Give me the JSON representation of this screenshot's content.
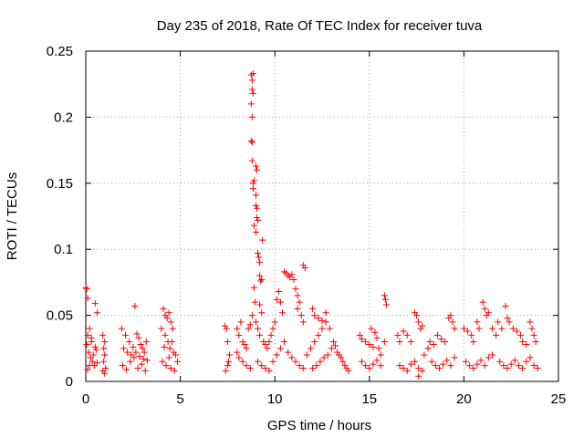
{
  "chart_data": {
    "type": "scatter",
    "title": "Day 235 of 2018, Rate Of TEC Index for receiver tuva",
    "xlabel": "GPS time / hours",
    "ylabel": "ROTI / TECUs",
    "xlim": [
      0,
      25
    ],
    "ylim": [
      0,
      0.25
    ],
    "xticks": [
      0,
      5,
      10,
      15,
      20,
      25
    ],
    "xtick_labels": [
      "0",
      "5",
      "10",
      "15",
      "20",
      "25"
    ],
    "yticks": [
      0,
      0.05,
      0.1,
      0.15,
      0.2,
      0.25
    ],
    "ytick_labels": [
      "0",
      "0.05",
      "0.1",
      "0.15",
      "0.2",
      "0.25"
    ],
    "grid": true,
    "marker": "+",
    "color": "#ff0000",
    "series": [
      {
        "points": [
          [
            0.0,
            0.071
          ],
          [
            0.05,
            0.07
          ],
          [
            0.1,
            0.063
          ],
          [
            0.2,
            0.04
          ],
          [
            0.3,
            0.033
          ],
          [
            0.5,
            0.059
          ],
          [
            0.6,
            0.052
          ],
          [
            0.05,
            0.028
          ],
          [
            0.15,
            0.022
          ],
          [
            0.25,
            0.018
          ],
          [
            0.35,
            0.015
          ],
          [
            0.45,
            0.012
          ],
          [
            0.55,
            0.024
          ],
          [
            0.1,
            0.009
          ],
          [
            0.3,
            0.03
          ],
          [
            0.5,
            0.026
          ],
          [
            0.4,
            0.02
          ],
          [
            0.2,
            0.012
          ],
          [
            0.6,
            0.014
          ],
          [
            0.1,
            0.035
          ],
          [
            0.9,
            0.035
          ],
          [
            1.0,
            0.03
          ],
          [
            0.95,
            0.025
          ],
          [
            1.0,
            0.02
          ],
          [
            0.95,
            0.015
          ],
          [
            1.05,
            0.01
          ],
          [
            0.9,
            0.008
          ],
          [
            1.0,
            0.006
          ],
          [
            1.9,
            0.04
          ],
          [
            2.1,
            0.035
          ],
          [
            2.3,
            0.03
          ],
          [
            2.0,
            0.025
          ],
          [
            2.2,
            0.022
          ],
          [
            2.4,
            0.02
          ],
          [
            2.6,
            0.057
          ],
          [
            2.7,
            0.036
          ],
          [
            2.8,
            0.033
          ],
          [
            2.9,
            0.028
          ],
          [
            3.0,
            0.025
          ],
          [
            3.1,
            0.022
          ],
          [
            3.2,
            0.03
          ],
          [
            1.95,
            0.012
          ],
          [
            2.15,
            0.009
          ],
          [
            2.35,
            0.015
          ],
          [
            2.55,
            0.018
          ],
          [
            2.75,
            0.01
          ],
          [
            2.95,
            0.013
          ],
          [
            3.15,
            0.008
          ],
          [
            3.25,
            0.016
          ],
          [
            2.5,
            0.026
          ],
          [
            2.65,
            0.022
          ],
          [
            2.85,
            0.019
          ],
          [
            3.05,
            0.017
          ],
          [
            4.0,
            0.04
          ],
          [
            4.1,
            0.055
          ],
          [
            4.2,
            0.05
          ],
          [
            4.3,
            0.048
          ],
          [
            4.4,
            0.052
          ],
          [
            4.5,
            0.045
          ],
          [
            4.6,
            0.04
          ],
          [
            4.2,
            0.035
          ],
          [
            4.35,
            0.03
          ],
          [
            4.45,
            0.025
          ],
          [
            4.55,
            0.03
          ],
          [
            4.65,
            0.022
          ],
          [
            4.75,
            0.02
          ],
          [
            4.05,
            0.015
          ],
          [
            4.25,
            0.012
          ],
          [
            4.5,
            0.01
          ],
          [
            4.7,
            0.008
          ],
          [
            4.85,
            0.015
          ],
          [
            4.15,
            0.026
          ],
          [
            4.4,
            0.018
          ],
          [
            7.35,
            0.042
          ],
          [
            7.45,
            0.04
          ],
          [
            7.5,
            0.012
          ],
          [
            7.4,
            0.008
          ],
          [
            7.55,
            0.015
          ],
          [
            7.6,
            0.02
          ],
          [
            7.5,
            0.03
          ],
          [
            8.0,
            0.04
          ],
          [
            8.1,
            0.035
          ],
          [
            8.2,
            0.045
          ],
          [
            8.3,
            0.03
          ],
          [
            8.4,
            0.028
          ],
          [
            8.5,
            0.025
          ],
          [
            8.6,
            0.04
          ],
          [
            8.7,
            0.043
          ],
          [
            8.8,
            0.05
          ],
          [
            8.3,
            0.015
          ],
          [
            8.5,
            0.012
          ],
          [
            8.7,
            0.01
          ],
          [
            8.1,
            0.018
          ],
          [
            8.0,
            0.022
          ],
          [
            8.75,
            0.232
          ],
          [
            8.8,
            0.228
          ],
          [
            8.85,
            0.233
          ],
          [
            8.8,
            0.221
          ],
          [
            8.85,
            0.218
          ],
          [
            8.75,
            0.21
          ],
          [
            8.8,
            0.2
          ],
          [
            8.75,
            0.182
          ],
          [
            8.8,
            0.181
          ],
          [
            8.8,
            0.167
          ],
          [
            8.85,
            0.15
          ],
          [
            8.85,
            0.146
          ],
          [
            8.9,
            0.152
          ],
          [
            9.0,
            0.163
          ],
          [
            9.05,
            0.16
          ],
          [
            9.0,
            0.141
          ],
          [
            9.0,
            0.133
          ],
          [
            9.05,
            0.131
          ],
          [
            8.9,
            0.118
          ],
          [
            9.05,
            0.124
          ],
          [
            9.1,
            0.122
          ],
          [
            9.0,
            0.113
          ],
          [
            9.35,
            0.107
          ],
          [
            9.1,
            0.097
          ],
          [
            9.15,
            0.094
          ],
          [
            9.2,
            0.09
          ],
          [
            9.2,
            0.08
          ],
          [
            9.25,
            0.076
          ],
          [
            9.3,
            0.077
          ],
          [
            8.9,
            0.071
          ],
          [
            8.95,
            0.06
          ],
          [
            9.2,
            0.058
          ],
          [
            9.3,
            0.052
          ],
          [
            9.0,
            0.045
          ],
          [
            9.1,
            0.04
          ],
          [
            9.2,
            0.035
          ],
          [
            9.4,
            0.03
          ],
          [
            9.5,
            0.028
          ],
          [
            9.6,
            0.025
          ],
          [
            9.7,
            0.03
          ],
          [
            9.8,
            0.035
          ],
          [
            9.9,
            0.04
          ],
          [
            10.0,
            0.045
          ],
          [
            10.1,
            0.062
          ],
          [
            10.2,
            0.068
          ],
          [
            10.3,
            0.06
          ],
          [
            10.4,
            0.052
          ],
          [
            10.5,
            0.083
          ],
          [
            10.6,
            0.082
          ],
          [
            10.7,
            0.08
          ],
          [
            10.8,
            0.079
          ],
          [
            10.9,
            0.081
          ],
          [
            11.0,
            0.077
          ],
          [
            11.1,
            0.07
          ],
          [
            11.2,
            0.065
          ],
          [
            11.3,
            0.06
          ],
          [
            11.5,
            0.088
          ],
          [
            11.6,
            0.086
          ],
          [
            11.2,
            0.055
          ],
          [
            11.4,
            0.05
          ],
          [
            11.5,
            0.045
          ],
          [
            9.1,
            0.015
          ],
          [
            9.3,
            0.012
          ],
          [
            9.5,
            0.01
          ],
          [
            9.7,
            0.008
          ],
          [
            9.9,
            0.015
          ],
          [
            10.1,
            0.02
          ],
          [
            10.3,
            0.025
          ],
          [
            10.5,
            0.03
          ],
          [
            10.7,
            0.022
          ],
          [
            10.9,
            0.018
          ],
          [
            11.1,
            0.015
          ],
          [
            11.3,
            0.012
          ],
          [
            11.5,
            0.01
          ],
          [
            11.7,
            0.02
          ],
          [
            11.9,
            0.025
          ],
          [
            12.1,
            0.03
          ],
          [
            12.3,
            0.035
          ],
          [
            12.5,
            0.04
          ],
          [
            12.7,
            0.045
          ],
          [
            12.9,
            0.04
          ],
          [
            12.0,
            0.055
          ],
          [
            12.1,
            0.05
          ],
          [
            12.3,
            0.048
          ],
          [
            12.5,
            0.046
          ],
          [
            12.7,
            0.052
          ],
          [
            12.0,
            0.01
          ],
          [
            12.2,
            0.012
          ],
          [
            12.4,
            0.015
          ],
          [
            12.6,
            0.018
          ],
          [
            12.8,
            0.02
          ],
          [
            13.0,
            0.025
          ],
          [
            13.1,
            0.03
          ],
          [
            13.2,
            0.027
          ],
          [
            13.3,
            0.022
          ],
          [
            13.4,
            0.02
          ],
          [
            13.5,
            0.018
          ],
          [
            13.6,
            0.015
          ],
          [
            13.7,
            0.012
          ],
          [
            13.8,
            0.01
          ],
          [
            13.9,
            0.008
          ],
          [
            14.5,
            0.035
          ],
          [
            14.6,
            0.032
          ],
          [
            14.8,
            0.03
          ],
          [
            15.0,
            0.028
          ],
          [
            15.2,
            0.026
          ],
          [
            15.4,
            0.033
          ],
          [
            15.5,
            0.025
          ],
          [
            15.6,
            0.02
          ],
          [
            15.8,
            0.03
          ],
          [
            14.6,
            0.015
          ],
          [
            14.8,
            0.012
          ],
          [
            15.0,
            0.01
          ],
          [
            15.2,
            0.013
          ],
          [
            15.4,
            0.016
          ],
          [
            15.6,
            0.012
          ],
          [
            15.1,
            0.04
          ],
          [
            15.3,
            0.037
          ],
          [
            15.8,
            0.065
          ],
          [
            15.85,
            0.062
          ],
          [
            15.9,
            0.058
          ],
          [
            16.5,
            0.035
          ],
          [
            16.6,
            0.03
          ],
          [
            16.8,
            0.038
          ],
          [
            17.0,
            0.035
          ],
          [
            17.2,
            0.03
          ],
          [
            17.4,
            0.052
          ],
          [
            17.5,
            0.05
          ],
          [
            17.6,
            0.045
          ],
          [
            17.7,
            0.04
          ],
          [
            17.8,
            0.042
          ],
          [
            16.6,
            0.012
          ],
          [
            16.8,
            0.01
          ],
          [
            17.0,
            0.008
          ],
          [
            17.2,
            0.013
          ],
          [
            17.4,
            0.015
          ],
          [
            17.6,
            0.01
          ],
          [
            17.8,
            0.008
          ],
          [
            17.6,
            0.004
          ],
          [
            17.9,
            0.02
          ],
          [
            18.1,
            0.025
          ],
          [
            18.2,
            0.03
          ],
          [
            18.4,
            0.028
          ],
          [
            18.6,
            0.035
          ],
          [
            18.8,
            0.032
          ],
          [
            19.0,
            0.03
          ],
          [
            19.2,
            0.048
          ],
          [
            19.3,
            0.05
          ],
          [
            19.4,
            0.045
          ],
          [
            19.5,
            0.04
          ],
          [
            18.3,
            0.015
          ],
          [
            18.5,
            0.012
          ],
          [
            18.7,
            0.01
          ],
          [
            18.9,
            0.013
          ],
          [
            19.1,
            0.016
          ],
          [
            19.3,
            0.012
          ],
          [
            19.5,
            0.018
          ],
          [
            20.0,
            0.04
          ],
          [
            20.2,
            0.038
          ],
          [
            20.4,
            0.035
          ],
          [
            20.5,
            0.03
          ],
          [
            20.7,
            0.045
          ],
          [
            20.8,
            0.04
          ],
          [
            21.0,
            0.06
          ],
          [
            21.1,
            0.055
          ],
          [
            21.2,
            0.05
          ],
          [
            21.3,
            0.052
          ],
          [
            21.5,
            0.04
          ],
          [
            21.7,
            0.035
          ],
          [
            20.1,
            0.015
          ],
          [
            20.3,
            0.012
          ],
          [
            20.5,
            0.01
          ],
          [
            20.7,
            0.013
          ],
          [
            20.9,
            0.016
          ],
          [
            21.1,
            0.012
          ],
          [
            21.3,
            0.018
          ],
          [
            21.5,
            0.02
          ],
          [
            21.8,
            0.045
          ],
          [
            22.0,
            0.04
          ],
          [
            22.2,
            0.057
          ],
          [
            22.3,
            0.048
          ],
          [
            22.4,
            0.045
          ],
          [
            22.6,
            0.04
          ],
          [
            22.8,
            0.038
          ],
          [
            23.0,
            0.035
          ],
          [
            23.1,
            0.03
          ],
          [
            23.3,
            0.028
          ],
          [
            23.5,
            0.045
          ],
          [
            23.6,
            0.04
          ],
          [
            23.7,
            0.035
          ],
          [
            23.8,
            0.03
          ],
          [
            21.9,
            0.015
          ],
          [
            22.1,
            0.012
          ],
          [
            22.3,
            0.01
          ],
          [
            22.5,
            0.013
          ],
          [
            22.7,
            0.016
          ],
          [
            22.9,
            0.012
          ],
          [
            23.1,
            0.01
          ],
          [
            23.3,
            0.015
          ],
          [
            23.5,
            0.018
          ],
          [
            23.7,
            0.012
          ],
          [
            23.9,
            0.01
          ]
        ]
      }
    ]
  }
}
